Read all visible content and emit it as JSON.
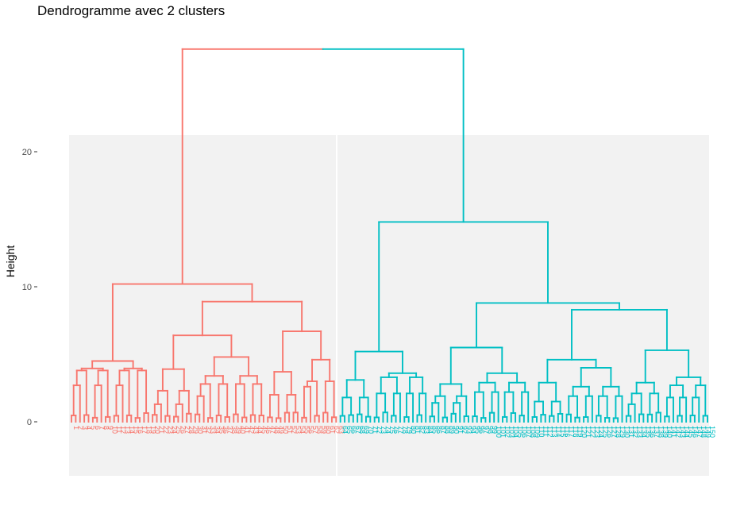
{
  "chart_data": {
    "type": "dendrogram",
    "title": "Dendrogramme avec 2 clusters",
    "xlabel": "",
    "ylabel": "Height",
    "ylim": [
      -3.9,
      21.1
    ],
    "yticks": [
      0,
      10,
      20
    ],
    "grid": false,
    "legend": "none",
    "n_leaves": 150,
    "clusters": [
      {
        "leaves": [
          1,
          63
        ],
        "color": "#F8766D"
      },
      {
        "leaves": [
          64,
          150
        ],
        "color": "#00BFC4"
      }
    ],
    "root": {
      "height": 27.6,
      "children": [
        {
          "height": 10.2,
          "children": [
            {
              "height": 4.5,
              "leaves": [
                1,
                19
              ],
              "sub": [
                2.2,
                3.8,
                2.7,
                2.1,
                1.8,
                1.5,
                1.2,
                0.9
              ]
            },
            {
              "height": 8.9,
              "children": [
                {
                  "height": 6.4,
                  "children": [
                    {
                      "height": 3.9,
                      "leaves": [
                        20,
                        29
                      ],
                      "sub": [
                        2.3,
                        1.3,
                        1.0,
                        0.7
                      ]
                    },
                    {
                      "height": 4.8,
                      "leaves": [
                        30,
                        46
                      ],
                      "sub": [
                        3.4,
                        2.8,
                        1.9,
                        1.5,
                        1.2,
                        0.8
                      ]
                    }
                  ]
                },
                {
                  "height": 6.7,
                  "children": [
                    {
                      "height": 3.7,
                      "leaves": [
                        47,
                        54
                      ],
                      "sub": [
                        2.0,
                        1.4,
                        1.0
                      ]
                    },
                    {
                      "height": 4.6,
                      "leaves": [
                        55,
                        63
                      ],
                      "sub": [
                        3.0,
                        2.6,
                        1.9,
                        1.2,
                        0.8
                      ]
                    }
                  ]
                }
              ]
            }
          ]
        },
        {
          "height": 14.8,
          "children": [
            {
              "height": 5.2,
              "children": [
                {
                  "height": 3.1,
                  "leaves": [
                    64,
                    71
                  ],
                  "sub": [
                    1.8,
                    1.2,
                    0.9
                  ]
                },
                {
                  "height": 3.6,
                  "leaves": [
                    72,
                    84
                  ],
                  "sub": [
                    3.3,
                    2.1,
                    1.4,
                    1.0,
                    0.7
                  ]
                }
              ]
            },
            {
              "height": 8.8,
              "children": [
                {
                  "height": 5.5,
                  "children": [
                    {
                      "height": 2.8,
                      "leaves": [
                        85,
                        94
                      ],
                      "sub": [
                        1.9,
                        1.4,
                        0.9
                      ]
                    },
                    {
                      "height": 3.6,
                      "leaves": [
                        95,
                        108
                      ],
                      "sub": [
                        2.9,
                        2.2,
                        1.6,
                        1.1,
                        0.7
                      ]
                    }
                  ]
                },
                {
                  "height": 8.3,
                  "children": [
                    {
                      "height": 4.6,
                      "children": [
                        {
                          "height": 2.9,
                          "leaves": [
                            109,
                            116
                          ],
                          "sub": [
                            1.5,
                            1.0
                          ]
                        },
                        {
                          "height": 4.0,
                          "leaves": [
                            117,
                            130
                          ],
                          "sub": [
                            2.6,
                            1.9,
                            1.3,
                            0.9
                          ]
                        }
                      ]
                    },
                    {
                      "height": 5.3,
                      "children": [
                        {
                          "height": 2.9,
                          "leaves": [
                            131,
                            139
                          ],
                          "sub": [
                            2.1,
                            1.3,
                            0.8
                          ]
                        },
                        {
                          "height": 3.3,
                          "leaves": [
                            140,
                            150
                          ],
                          "sub": [
                            2.7,
                            1.8,
                            1.2,
                            0.7
                          ]
                        }
                      ]
                    }
                  ]
                }
              ]
            }
          ]
        }
      ]
    }
  }
}
